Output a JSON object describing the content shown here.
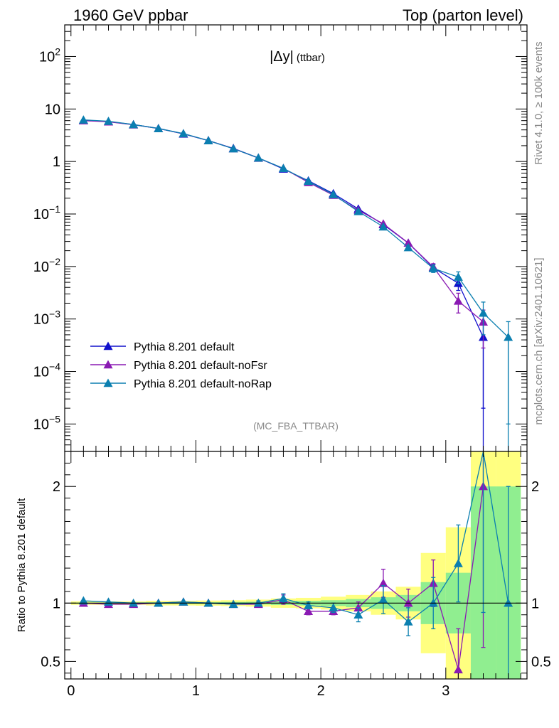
{
  "header": {
    "left_title": "1960 GeV ppbar",
    "right_title": "Top (parton level)"
  },
  "side_labels": {
    "rivet": "Rivet 4.1.0, ≥ 100k events",
    "mcplots": "mcplots.cern.ch [arXiv:2401.10621]"
  },
  "chart_data": [
    {
      "type": "line",
      "panel": "main",
      "title": "|Δy| (ttbar)",
      "title_main": "|Δy|",
      "title_sub": "(ttbar)",
      "annotation": "(MC_FBA_TTBAR)",
      "xlabel": "",
      "ylabel": "",
      "yscale": "log",
      "xlim": [
        -0.05,
        3.65
      ],
      "ylim": [
        3e-06,
        400
      ],
      "y_tick_labels": [
        "10^2",
        "10",
        "1",
        "10^-1",
        "10^-2",
        "10^-3",
        "10^-4",
        "10^-5"
      ],
      "x": [
        0.1,
        0.3,
        0.5,
        0.7,
        0.9,
        1.1,
        1.3,
        1.5,
        1.7,
        1.9,
        2.1,
        2.3,
        2.5,
        2.7,
        2.9,
        3.1,
        3.3,
        3.5
      ],
      "legend_position": "bottom-left",
      "series": [
        {
          "name": "Pythia 8.201 default",
          "color": "#1010cc",
          "values": [
            6.05,
            5.75,
            5.05,
            4.25,
            3.35,
            2.5,
            1.78,
            1.17,
            0.72,
            0.43,
            0.245,
            0.125,
            0.063,
            0.028,
            0.0095,
            0.0048,
            0.00045,
            null
          ],
          "errors": [
            null,
            null,
            null,
            null,
            null,
            null,
            null,
            null,
            null,
            null,
            null,
            null,
            null,
            null,
            0.0015,
            0.0013,
            0.00043,
            null
          ]
        },
        {
          "name": "Pythia 8.201 default-noFsr",
          "color": "#8a1ab3",
          "values": [
            6.0,
            5.7,
            5.0,
            4.25,
            3.38,
            2.5,
            1.76,
            1.16,
            0.74,
            0.4,
            0.228,
            0.118,
            0.065,
            0.028,
            0.0098,
            0.0022,
            0.00088,
            null
          ],
          "errors": [
            null,
            null,
            null,
            null,
            null,
            null,
            null,
            null,
            null,
            null,
            null,
            null,
            null,
            null,
            0.0015,
            0.0009,
            0.0006,
            null
          ]
        },
        {
          "name": "Pythia 8.201 default-noRap",
          "color": "#0b7fb0",
          "values": [
            6.2,
            5.85,
            5.05,
            4.25,
            3.4,
            2.5,
            1.75,
            1.17,
            0.74,
            0.42,
            0.235,
            0.112,
            0.057,
            0.023,
            0.0092,
            0.0063,
            0.0013,
            0.00045
          ],
          "errors": [
            null,
            null,
            null,
            null,
            null,
            null,
            null,
            null,
            null,
            null,
            null,
            null,
            null,
            null,
            0.0015,
            0.0016,
            0.0008,
            0.00044
          ]
        }
      ]
    },
    {
      "type": "line",
      "panel": "ratio",
      "ylabel": "Ratio to Pythia 8.201 default",
      "xlim": [
        -0.05,
        3.65
      ],
      "ylim": [
        0.35,
        2.3
      ],
      "x_ticks": [
        0,
        1,
        2,
        3
      ],
      "y_ticks": [
        0.5,
        1,
        2
      ],
      "x": [
        0.1,
        0.3,
        0.5,
        0.7,
        0.9,
        1.1,
        1.3,
        1.5,
        1.7,
        1.9,
        2.1,
        2.3,
        2.5,
        2.7,
        2.9,
        3.1,
        3.3,
        3.5
      ],
      "bin_edges": [
        0,
        0.2,
        0.4,
        0.6,
        0.8,
        1.0,
        1.2,
        1.4,
        1.6,
        1.8,
        2.0,
        2.2,
        2.4,
        2.6,
        2.8,
        3.0,
        3.2,
        3.4,
        3.6
      ],
      "band_stat": {
        "color": "#90ee90",
        "lo": [
          0.995,
          0.995,
          0.994,
          0.993,
          0.993,
          0.992,
          0.99,
          0.988,
          0.984,
          0.98,
          0.975,
          0.965,
          0.95,
          0.93,
          0.82,
          0.74,
          0.35,
          0.35
        ],
        "hi": [
          1.005,
          1.005,
          1.006,
          1.007,
          1.007,
          1.008,
          1.01,
          1.012,
          1.016,
          1.02,
          1.025,
          1.035,
          1.05,
          1.07,
          1.18,
          1.26,
          2.0,
          2.0
        ]
      },
      "band_total": {
        "color": "#ffff80",
        "lo": [
          0.985,
          0.985,
          0.985,
          0.98,
          0.98,
          0.978,
          0.975,
          0.97,
          0.96,
          0.955,
          0.945,
          0.93,
          0.9,
          0.86,
          0.57,
          0.35,
          0.35,
          0.35
        ],
        "hi": [
          1.015,
          1.015,
          1.015,
          1.02,
          1.02,
          1.022,
          1.025,
          1.03,
          1.04,
          1.045,
          1.055,
          1.07,
          1.1,
          1.14,
          1.43,
          1.65,
          2.3,
          2.3
        ]
      },
      "series": [
        {
          "name": "Pythia 8.201 default-noFsr",
          "color": "#8a1ab3",
          "values": [
            1.0,
            0.99,
            0.99,
            1.0,
            1.01,
            1.0,
            0.99,
            0.99,
            1.03,
            0.93,
            0.93,
            0.96,
            1.17,
            1.0,
            1.17,
            0.43,
            2.0,
            null
          ],
          "errors": [
            null,
            null,
            null,
            null,
            null,
            null,
            null,
            0.02,
            0.04,
            0.03,
            0.03,
            0.05,
            0.12,
            0.12,
            0.2,
            0.35,
            1.38,
            null
          ]
        },
        {
          "name": "Pythia 8.201 default-noRap",
          "color": "#0b7fb0",
          "values": [
            1.02,
            1.01,
            1.0,
            1.0,
            1.01,
            1.0,
            0.99,
            1.0,
            1.04,
            0.98,
            0.96,
            0.9,
            1.03,
            0.84,
            1.0,
            1.34,
            2.3,
            1.0
          ],
          "errors": [
            null,
            null,
            null,
            null,
            null,
            null,
            null,
            0.02,
            0.04,
            0.03,
            0.04,
            0.06,
            0.12,
            0.12,
            0.22,
            0.33,
            1.38,
            1.0
          ]
        }
      ]
    }
  ]
}
